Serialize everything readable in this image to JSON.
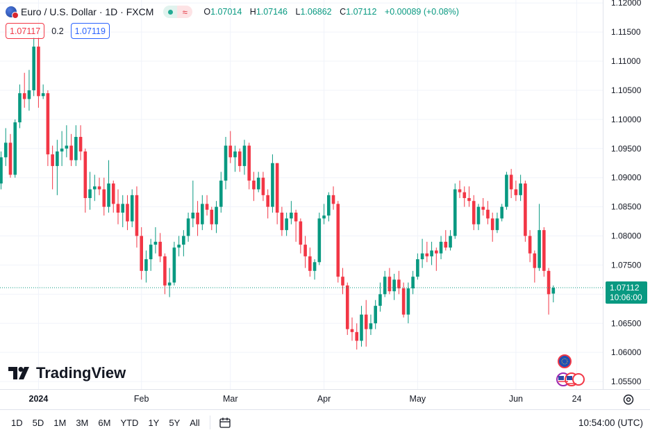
{
  "header": {
    "symbol_title": "Euro / U.S. Dollar · 1D · FXCM",
    "symbol_icon": "eur-usd-flag-icon",
    "ohlc": [
      {
        "key": "O",
        "value": "1.07014"
      },
      {
        "key": "H",
        "value": "1.07146"
      },
      {
        "key": "L",
        "value": "1.06862"
      },
      {
        "key": "C",
        "value": "1.07112"
      }
    ],
    "change": "+0.00089 (+0.08%)"
  },
  "quote": {
    "sell": "1.07117",
    "spread": "0.2",
    "buy": "1.07119"
  },
  "logo_text": "TradingView",
  "bottom_bar": {
    "ranges": [
      "1D",
      "5D",
      "1M",
      "3M",
      "6M",
      "YTD",
      "1Y",
      "5Y",
      "All"
    ],
    "clock": "10:54:00 (UTC)"
  },
  "colors": {
    "up": "#089981",
    "down": "#f23645",
    "grid": "#f0f3fa",
    "text": "#131722"
  },
  "chart_data": {
    "type": "candlestick",
    "symbol": "EURUSD",
    "interval": "1D",
    "ylim": [
      1.0537,
      1.1205
    ],
    "y_ticks": [
      "1.12000",
      "1.11500",
      "1.11000",
      "1.10500",
      "1.10000",
      "1.09500",
      "1.09000",
      "1.08500",
      "1.08000",
      "1.07500",
      "1.07000",
      "1.06500",
      "1.06000",
      "1.05500"
    ],
    "x_labels": [
      {
        "label": "2024",
        "bar": 8
      },
      {
        "label": "Feb",
        "bar": 30
      },
      {
        "label": "Mar",
        "bar": 49
      },
      {
        "label": "Apr",
        "bar": 69
      },
      {
        "label": "May",
        "bar": 89
      },
      {
        "label": "Jun",
        "bar": 110
      },
      {
        "label": "24",
        "bar": 123
      }
    ],
    "last_price": "1.07112",
    "countdown": "10:06:00",
    "ohlc": [
      [
        1.089,
        1.0945,
        1.088,
        1.0935
      ],
      [
        1.0935,
        1.0985,
        1.092,
        1.096
      ],
      [
        1.096,
        1.0975,
        1.09,
        1.0905
      ],
      [
        1.0905,
        1.1,
        1.09,
        1.0995
      ],
      [
        1.0995,
        1.106,
        1.0985,
        1.1045
      ],
      [
        1.1045,
        1.108,
        1.102,
        1.1035
      ],
      [
        1.1035,
        1.1085,
        1.1015,
        1.105
      ],
      [
        1.105,
        1.114,
        1.104,
        1.1125
      ],
      [
        1.1125,
        1.114,
        1.102,
        1.104
      ],
      [
        1.104,
        1.106,
        1.1035,
        1.1045
      ],
      [
        1.1045,
        1.105,
        1.092,
        1.094
      ],
      [
        1.094,
        1.0955,
        1.088,
        1.092
      ],
      [
        1.092,
        1.0965,
        1.087,
        1.0945
      ],
      [
        1.0945,
        1.098,
        1.092,
        1.095
      ],
      [
        1.095,
        1.099,
        1.0935,
        1.0955
      ],
      [
        1.0955,
        1.0975,
        1.092,
        1.093
      ],
      [
        1.093,
        1.099,
        1.092,
        1.097
      ],
      [
        1.097,
        1.099,
        1.093,
        1.0945
      ],
      [
        1.0945,
        1.095,
        1.084,
        1.0865
      ],
      [
        1.0865,
        1.091,
        1.0845,
        1.088
      ],
      [
        1.088,
        1.0905,
        1.086,
        1.0885
      ],
      [
        1.0885,
        1.09,
        1.087,
        1.088
      ],
      [
        1.088,
        1.09,
        1.0835,
        1.085
      ],
      [
        1.085,
        1.093,
        1.084,
        1.089
      ],
      [
        1.089,
        1.0895,
        1.084,
        1.0855
      ],
      [
        1.0855,
        1.088,
        1.082,
        1.084
      ],
      [
        1.084,
        1.087,
        1.0815,
        1.0855
      ],
      [
        1.0855,
        1.087,
        1.081,
        1.0825
      ],
      [
        1.0825,
        1.088,
        1.0815,
        1.087
      ],
      [
        1.087,
        1.0885,
        1.078,
        1.08
      ],
      [
        1.08,
        1.0815,
        1.0725,
        1.074
      ],
      [
        1.074,
        1.0775,
        1.072,
        1.076
      ],
      [
        1.076,
        1.0795,
        1.074,
        1.0785
      ],
      [
        1.0785,
        1.0815,
        1.077,
        1.079
      ],
      [
        1.079,
        1.0805,
        1.0755,
        1.0765
      ],
      [
        1.0765,
        1.077,
        1.07,
        1.0715
      ],
      [
        1.0715,
        1.0745,
        1.0695,
        1.072
      ],
      [
        1.072,
        1.079,
        1.0715,
        1.078
      ],
      [
        1.078,
        1.08,
        1.0765,
        1.0785
      ],
      [
        1.0785,
        1.081,
        1.0765,
        1.08
      ],
      [
        1.08,
        1.084,
        1.079,
        1.083
      ],
      [
        1.083,
        1.0895,
        1.0815,
        1.084
      ],
      [
        1.084,
        1.086,
        1.08,
        1.082
      ],
      [
        1.082,
        1.087,
        1.081,
        1.0855
      ],
      [
        1.0855,
        1.087,
        1.0835,
        1.0845
      ],
      [
        1.0845,
        1.085,
        1.081,
        1.082
      ],
      [
        1.082,
        1.086,
        1.0805,
        1.085
      ],
      [
        1.085,
        1.091,
        1.084,
        1.0895
      ],
      [
        1.0895,
        1.097,
        1.088,
        1.0955
      ],
      [
        1.0955,
        1.098,
        1.0925,
        1.0935
      ],
      [
        1.0935,
        1.0955,
        1.091,
        1.0945
      ],
      [
        1.0945,
        1.095,
        1.091,
        1.092
      ],
      [
        1.092,
        1.0965,
        1.0905,
        1.0955
      ],
      [
        1.0955,
        1.096,
        1.088,
        1.0895
      ],
      [
        1.0895,
        1.091,
        1.086,
        1.088
      ],
      [
        1.088,
        1.091,
        1.0875,
        1.09
      ],
      [
        1.09,
        1.091,
        1.086,
        1.087
      ],
      [
        1.087,
        1.088,
        1.083,
        1.085
      ],
      [
        1.085,
        1.094,
        1.084,
        1.0925
      ],
      [
        1.0925,
        1.0925,
        1.082,
        1.084
      ],
      [
        1.084,
        1.085,
        1.08,
        1.081
      ],
      [
        1.081,
        1.084,
        1.08,
        1.083
      ],
      [
        1.083,
        1.086,
        1.082,
        1.084
      ],
      [
        1.084,
        1.0845,
        1.079,
        1.0825
      ],
      [
        1.0825,
        1.083,
        1.077,
        1.0785
      ],
      [
        1.0785,
        1.08,
        1.0745,
        1.0765
      ],
      [
        1.0765,
        1.078,
        1.073,
        1.074
      ],
      [
        1.074,
        1.076,
        1.0725,
        1.0755
      ],
      [
        1.0755,
        1.084,
        1.075,
        1.083
      ],
      [
        1.083,
        1.0855,
        1.082,
        1.0835
      ],
      [
        1.0835,
        1.0875,
        1.0825,
        1.087
      ],
      [
        1.087,
        1.0885,
        1.0845,
        1.0855
      ],
      [
        1.0855,
        1.086,
        1.072,
        1.073
      ],
      [
        1.073,
        1.0745,
        1.07,
        1.0715
      ],
      [
        1.0715,
        1.072,
        1.063,
        1.064
      ],
      [
        1.064,
        1.066,
        1.062,
        1.0635
      ],
      [
        1.0635,
        1.065,
        1.0605,
        1.062
      ],
      [
        1.062,
        1.068,
        1.061,
        1.0665
      ],
      [
        1.0665,
        1.069,
        1.061,
        1.064
      ],
      [
        1.064,
        1.0665,
        1.063,
        1.065
      ],
      [
        1.065,
        1.069,
        1.064,
        1.068
      ],
      [
        1.068,
        1.072,
        1.067,
        1.07
      ],
      [
        1.07,
        1.074,
        1.0695,
        1.073
      ],
      [
        1.073,
        1.0745,
        1.07,
        1.0705
      ],
      [
        1.0705,
        1.0735,
        1.069,
        1.0725
      ],
      [
        1.0725,
        1.074,
        1.07,
        1.071
      ],
      [
        1.071,
        1.072,
        1.066,
        1.0665
      ],
      [
        1.0665,
        1.072,
        1.065,
        1.071
      ],
      [
        1.071,
        1.074,
        1.07,
        1.073
      ],
      [
        1.073,
        1.077,
        1.0725,
        1.076
      ],
      [
        1.076,
        1.0795,
        1.0745,
        1.077
      ],
      [
        1.077,
        1.079,
        1.0755,
        1.0765
      ],
      [
        1.0765,
        1.079,
        1.075,
        1.0775
      ],
      [
        1.0775,
        1.078,
        1.074,
        1.077
      ],
      [
        1.077,
        1.08,
        1.076,
        1.079
      ],
      [
        1.079,
        1.081,
        1.0775,
        1.078
      ],
      [
        1.078,
        1.081,
        1.0775,
        1.08
      ],
      [
        1.08,
        1.089,
        1.0795,
        1.088
      ],
      [
        1.088,
        1.0895,
        1.0865,
        1.0875
      ],
      [
        1.0875,
        1.0885,
        1.085,
        1.0865
      ],
      [
        1.0865,
        1.0885,
        1.085,
        1.086
      ],
      [
        1.086,
        1.087,
        1.081,
        1.082
      ],
      [
        1.082,
        1.0855,
        1.081,
        1.085
      ],
      [
        1.085,
        1.0865,
        1.0835,
        1.0845
      ],
      [
        1.0845,
        1.086,
        1.082,
        1.083
      ],
      [
        1.083,
        1.084,
        1.079,
        1.081
      ],
      [
        1.081,
        1.084,
        1.0805,
        1.083
      ],
      [
        1.083,
        1.0855,
        1.0825,
        1.085
      ],
      [
        1.085,
        1.091,
        1.0845,
        1.0905
      ],
      [
        1.0905,
        1.0915,
        1.0865,
        1.088
      ],
      [
        1.088,
        1.0895,
        1.086,
        1.087
      ],
      [
        1.087,
        1.0905,
        1.086,
        1.089
      ],
      [
        1.089,
        1.0895,
        1.079,
        1.08
      ],
      [
        1.08,
        1.081,
        1.0755,
        1.077
      ],
      [
        1.077,
        1.0775,
        1.072,
        1.0745
      ],
      [
        1.0745,
        1.0855,
        1.074,
        1.081
      ],
      [
        1.081,
        1.0815,
        1.073,
        1.074
      ],
      [
        1.074,
        1.0745,
        1.0665,
        1.07
      ],
      [
        1.0701,
        1.0715,
        1.0686,
        1.0711
      ]
    ]
  }
}
